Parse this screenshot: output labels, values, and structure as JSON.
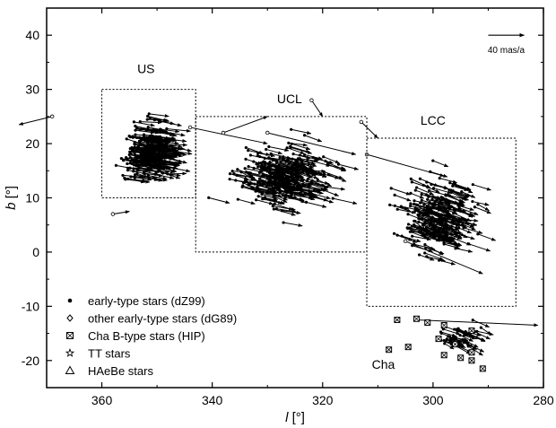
{
  "chart_data": {
    "type": "scatter",
    "xlabel_italic": "l",
    "xlabel_unit": " [°]",
    "ylabel_italic": "b",
    "ylabel_unit": " [°]",
    "xlim": [
      370,
      280
    ],
    "ylim": [
      -25,
      45
    ],
    "xticks": [
      360,
      340,
      320,
      300,
      280
    ],
    "yticks": [
      -20,
      -10,
      0,
      10,
      20,
      30,
      40
    ],
    "grid": false,
    "regions": [
      {
        "name": "US",
        "l_range": [
          343,
          360
        ],
        "b_range": [
          10,
          30
        ]
      },
      {
        "name": "UCL",
        "l_range": [
          312,
          343
        ],
        "b_range": [
          0,
          25
        ]
      },
      {
        "name": "LCC",
        "l_range": [
          285,
          312
        ],
        "b_range": [
          -10,
          21
        ]
      }
    ],
    "region_labels": [
      {
        "text": "US",
        "l": 352,
        "b": 33
      },
      {
        "text": "UCL",
        "l": 326,
        "b": 27.5
      },
      {
        "text": "LCC",
        "l": 300,
        "b": 23.5
      },
      {
        "text": "Cha",
        "l": 309,
        "b": -21.5
      }
    ],
    "scale_arrow": {
      "label": "40 mas/a",
      "l_start": 290,
      "l_end": 283.5,
      "b": 40
    },
    "legend": [
      {
        "marker": "dot",
        "label": "early-type stars (dZ99)"
      },
      {
        "marker": "diamond",
        "label": "other early-type stars (dG89)"
      },
      {
        "marker": "crossed-square",
        "label": "Cha B-type stars (HIP)"
      },
      {
        "marker": "star",
        "label": "TT stars"
      },
      {
        "marker": "triangle",
        "label": "HAeBe stars"
      }
    ],
    "legend_placement": "bottom-left",
    "highlighted_vectors": [
      {
        "l": 369,
        "b": 25,
        "dl": 6,
        "db": -1.5
      },
      {
        "l": 303,
        "b": -12.5,
        "dl": -22,
        "db": -1
      },
      {
        "l": 344,
        "b": 23,
        "dl": -14,
        "db": -3
      },
      {
        "l": 322,
        "b": 28,
        "dl": -2,
        "db": -3
      },
      {
        "l": 313,
        "b": 24,
        "dl": -3,
        "db": -3
      },
      {
        "l": 330,
        "b": 22,
        "dl": -16,
        "db": -4
      },
      {
        "l": 312,
        "b": 18,
        "dl": -14,
        "db": -4
      },
      {
        "l": 358,
        "b": 7,
        "dl": -3,
        "db": 0.5
      },
      {
        "l": 338,
        "b": 22,
        "dl": -8,
        "db": 3
      },
      {
        "l": 305,
        "b": 2,
        "dl": -14,
        "db": -6
      }
    ]
  }
}
